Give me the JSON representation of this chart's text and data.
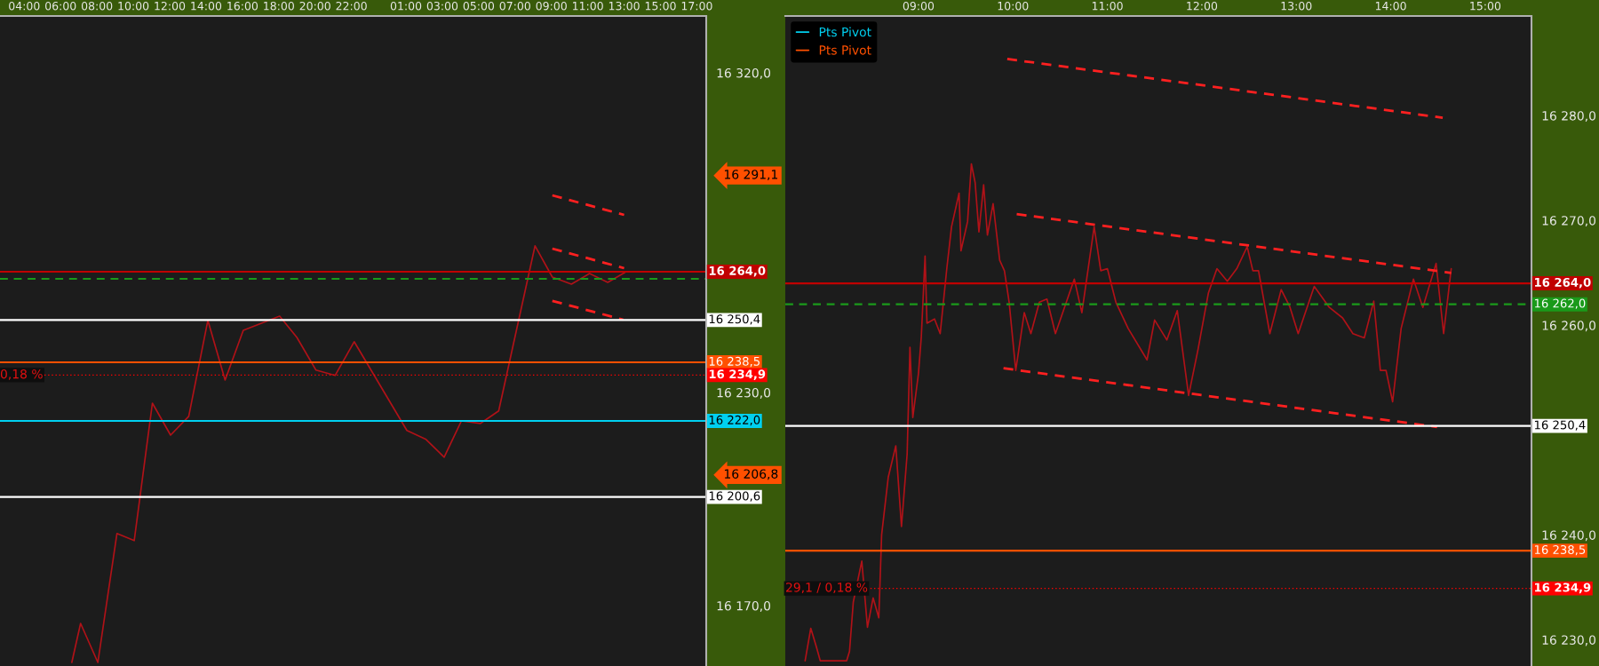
{
  "chart_data": [
    {
      "type": "line",
      "xlim": [
        "2000-01-01T02:40",
        "2000-01-02T17:31"
      ],
      "xticks": [
        {
          "value": "2000-01-01T04:00",
          "label": "04:00"
        },
        {
          "value": "2000-01-01T06:00",
          "label": "06:00"
        },
        {
          "value": "2000-01-01T08:00",
          "label": "08:00"
        },
        {
          "value": "2000-01-01T10:00",
          "label": "10:00"
        },
        {
          "value": "2000-01-01T12:00",
          "label": "12:00"
        },
        {
          "value": "2000-01-01T14:00",
          "label": "14:00"
        },
        {
          "value": "2000-01-01T16:00",
          "label": "16:00"
        },
        {
          "value": "2000-01-01T18:00",
          "label": "18:00"
        },
        {
          "value": "2000-01-01T20:00",
          "label": "20:00"
        },
        {
          "value": "2000-01-01T22:00",
          "label": "22:00"
        },
        {
          "value": "2000-01-02T01:00",
          "label": "01:00"
        },
        {
          "value": "2000-01-02T03:00",
          "label": "03:00"
        },
        {
          "value": "2000-01-02T05:00",
          "label": "05:00"
        },
        {
          "value": "2000-01-02T07:00",
          "label": "07:00"
        },
        {
          "value": "2000-01-02T09:00",
          "label": "09:00"
        },
        {
          "value": "2000-01-02T11:00",
          "label": "11:00"
        },
        {
          "value": "2000-01-02T13:00",
          "label": "13:00"
        },
        {
          "value": "2000-01-02T15:00",
          "label": "15:00"
        },
        {
          "value": "2000-01-02T17:00",
          "label": "17:00"
        }
      ],
      "ylim": [
        16153,
        16336
      ],
      "yticks": [
        {
          "value": 16170,
          "label": "16 170,0"
        },
        {
          "value": 16230,
          "label": "16 230,0"
        },
        {
          "value": 16320,
          "label": "16 320,0"
        }
      ],
      "series": [
        {
          "color": "#b01218",
          "x": [
            "2000-01-01T06:37",
            "2000-01-01T07:06",
            "2000-01-01T08:03",
            "2000-01-01T09:06",
            "2000-01-01T10:03",
            "2000-01-01T11:03",
            "2000-01-01T12:03",
            "2000-01-01T13:03",
            "2000-01-01T14:06",
            "2000-01-01T15:03",
            "2000-01-01T16:03",
            "2000-01-01T18:03",
            "2000-01-01T19:00",
            "2000-01-01T20:03",
            "2000-01-01T21:06",
            "2000-01-01T22:09",
            "2000-01-02T01:03",
            "2000-01-02T02:06",
            "2000-01-02T03:06",
            "2000-01-02T04:03",
            "2000-01-02T05:06",
            "2000-01-02T06:06",
            "2000-01-02T08:06",
            "2000-01-02T09:03",
            "2000-01-02T10:06",
            "2000-01-02T11:06",
            "2000-01-02T12:06",
            "2000-01-02T13:03"
          ],
          "values": [
            16154,
            16165.0,
            16154,
            16190.3,
            16188.3,
            16227.0,
            16218.0,
            16223.3,
            16250.3,
            16233.5,
            16247.5,
            16251.5,
            16245.5,
            16236.3,
            16234.8,
            16244.3,
            16219.3,
            16216.8,
            16211.8,
            16222.0,
            16221.3,
            16224.8,
            16271.3,
            16262.5,
            16260.5,
            16263.5,
            16261.0,
            16263.8
          ]
        },
        {
          "color": "#ff2020",
          "line_style": "dashed",
          "x": [
            "2000-01-02T09:03",
            "2000-01-02T13:00"
          ],
          "values": [
            16285.5,
            16280.0
          ]
        },
        {
          "color": "#ff2020",
          "line_style": "dashed",
          "x": [
            "2000-01-02T09:03",
            "2000-01-02T13:00"
          ],
          "values": [
            16270.5,
            16265.0
          ]
        },
        {
          "color": "#ff2020",
          "line_style": "dashed",
          "x": [
            "2000-01-02T09:03",
            "2000-01-02T12:57"
          ],
          "values": [
            16255.8,
            16250.5
          ]
        }
      ],
      "ref_lines": [
        {
          "axis": "y",
          "value": 16264.0,
          "label": "16 264,0",
          "color": "#c00000"
        },
        {
          "axis": "y",
          "value": 16262.0,
          "label": null,
          "color": "#1a9a1a",
          "line_style": "dashed"
        },
        {
          "axis": "y",
          "value": 16250.4,
          "label": "16 250,4",
          "color": "#ffffff"
        },
        {
          "axis": "y",
          "value": 16238.5,
          "label": "16 238,5",
          "color": "#ff5000"
        },
        {
          "axis": "y",
          "value": 16234.9,
          "label": "16 234,9",
          "color": "#ff0000",
          "line_style": "dotted"
        },
        {
          "axis": "y",
          "value": 16222.0,
          "label": "16 222,0",
          "color": "#00d0f0"
        },
        {
          "axis": "y",
          "value": 16200.6,
          "label": "16 200,6",
          "color": "#ffffff"
        }
      ],
      "annotations": [
        "0,18 %",
        "16 291,1",
        "16 206,8"
      ]
    },
    {
      "type": "line",
      "xlim": [
        7.59,
        15.49
      ],
      "xticks": [
        {
          "value": 9,
          "label": "09:00"
        },
        {
          "value": 10,
          "label": "10:00"
        },
        {
          "value": 11,
          "label": "11:00"
        },
        {
          "value": 12,
          "label": "12:00"
        },
        {
          "value": 13,
          "label": "13:00"
        },
        {
          "value": 14,
          "label": "14:00"
        },
        {
          "value": 15,
          "label": "15:00"
        }
      ],
      "ylim": [
        16227.5,
        16289.5
      ],
      "yticks": [
        {
          "value": 16230,
          "label": "16 230,0"
        },
        {
          "value": 16240,
          "label": "16 240,0"
        },
        {
          "value": 16260,
          "label": "16 260,0"
        },
        {
          "value": 16270,
          "label": "16 270,0"
        },
        {
          "value": 16280,
          "label": "16 280,0"
        }
      ],
      "legend": "top left",
      "series": [
        {
          "color": "#b01218",
          "x": [
            7.8,
            7.86,
            7.92,
            7.96,
            8.24,
            8.27,
            8.31,
            8.4,
            8.46,
            8.52,
            8.58,
            8.61,
            8.68,
            8.76,
            8.82,
            8.88,
            8.91,
            8.94,
            9.0,
            9.03,
            9.07,
            9.09,
            9.17,
            9.23,
            9.3,
            9.35,
            9.43,
            9.45,
            9.52,
            9.56,
            9.6,
            9.64,
            9.69,
            9.73,
            9.79,
            9.86,
            9.91,
            9.96,
            10.03,
            10.12,
            10.19,
            10.28,
            10.36,
            10.45,
            10.65,
            10.73,
            10.86,
            10.93,
            11.0,
            11.09,
            11.22,
            11.42,
            11.5,
            11.63,
            11.74,
            11.86,
            11.96,
            12.07,
            12.16,
            12.27,
            12.37,
            12.48,
            12.54,
            12.6,
            12.72,
            12.84,
            12.93,
            13.02,
            13.19,
            13.35,
            13.49,
            13.6,
            13.72,
            13.82,
            13.89,
            13.95,
            14.02,
            14.11,
            14.24,
            14.34,
            14.48,
            14.56,
            14.64
          ],
          "values": [
            16228,
            16231.1,
            16229.3,
            16228,
            16228,
            16228.9,
            16233.6,
            16237.5,
            16231.2,
            16234.0,
            16232.1,
            16240.0,
            16245.5,
            16248.5,
            16240.8,
            16247.7,
            16257.9,
            16251.2,
            16255.4,
            16258.9,
            16266.6,
            16260.2,
            16260.6,
            16259.2,
            16265.4,
            16269.4,
            16272.6,
            16267.1,
            16269.9,
            16275.4,
            16273.6,
            16268.9,
            16273.4,
            16268.6,
            16271.6,
            16266.2,
            16265.2,
            16262.2,
            16255.7,
            16261.2,
            16259.2,
            16262.2,
            16262.5,
            16259.2,
            16264.4,
            16261.2,
            16269.4,
            16265.2,
            16265.4,
            16262.2,
            16259.7,
            16256.7,
            16260.5,
            16258.6,
            16261.4,
            16253.3,
            16257.7,
            16263.1,
            16265.4,
            16264.2,
            16265.4,
            16267.5,
            16265.2,
            16265.2,
            16259.2,
            16263.4,
            16261.8,
            16259.2,
            16263.7,
            16261.7,
            16260.7,
            16259.2,
            16258.8,
            16262.3,
            16255.7,
            16255.7,
            16252.7,
            16259.7,
            16264.4,
            16261.7,
            16265.9,
            16259.2,
            16265.4
          ]
        },
        {
          "color": "#ff2020",
          "line_style": "dashed",
          "x": [
            9.94,
            14.55
          ],
          "values": [
            16285.4,
            16279.8
          ]
        },
        {
          "color": "#ff2020",
          "line_style": "dashed",
          "x": [
            10.04,
            14.64
          ],
          "values": [
            16270.6,
            16265.0
          ]
        },
        {
          "color": "#ff2020",
          "line_style": "dashed",
          "x": [
            9.9,
            14.49
          ],
          "values": [
            16255.9,
            16250.3
          ]
        },
        {
          "name": "Pts Pivot",
          "color": "#00d0f0",
          "values": [
            null
          ]
        },
        {
          "name": "Pts Pivot",
          "color": "#ff5000",
          "values": [
            null
          ]
        }
      ],
      "ref_lines": [
        {
          "axis": "y",
          "value": 16264.0,
          "label": "16 264,0",
          "color": "#c00000"
        },
        {
          "axis": "y",
          "value": 16262.0,
          "label": "16 262,0",
          "color": "#1a9a1a",
          "line_style": "dashed"
        },
        {
          "axis": "y",
          "value": 16250.4,
          "label": "16 250,4",
          "color": "#ffffff"
        },
        {
          "axis": "y",
          "value": 16238.5,
          "label": "16 238,5",
          "color": "#ff5000"
        },
        {
          "axis": "y",
          "value": 16234.9,
          "label": "16 234,9",
          "color": "#ff0000",
          "line_style": "dotted"
        }
      ],
      "annotations": [
        "29,1 / 0,18 %"
      ]
    }
  ]
}
